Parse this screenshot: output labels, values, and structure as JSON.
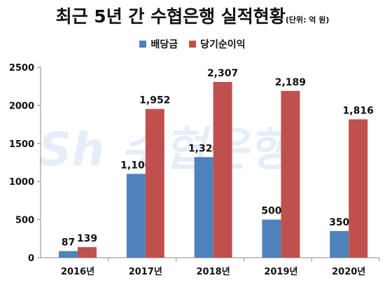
{
  "title": "최근 5년 간 수협은행 실적현황",
  "unit_note": "(단위: 억 원)",
  "watermark": "Sh 수협은행",
  "colors": {
    "dividend": "#4f81bd",
    "net_income": "#c0504d"
  },
  "chart_data": {
    "type": "bar",
    "categories": [
      "2016년",
      "2017년",
      "2018년",
      "2019년",
      "2020년"
    ],
    "series": [
      {
        "name": "배당금",
        "values": [
          87,
          1100,
          1320,
          500,
          350
        ],
        "labels": [
          "87",
          "1,100",
          "1,320",
          "500",
          "350"
        ]
      },
      {
        "name": "당기순이익",
        "values": [
          139,
          1952,
          2307,
          2189,
          1816
        ],
        "labels": [
          "139",
          "1,952",
          "2,307",
          "2,189",
          "1,816"
        ]
      }
    ],
    "yticks": [
      "0",
      "500",
      "1000",
      "1500",
      "2000",
      "2500"
    ],
    "ylim": [
      0,
      2500
    ],
    "legend_position": "top-center",
    "grid": false
  }
}
